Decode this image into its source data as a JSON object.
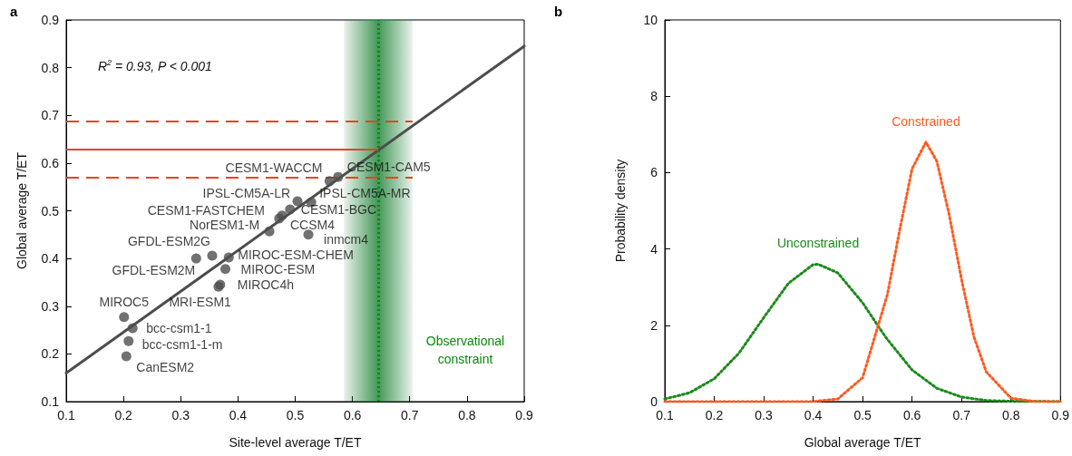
{
  "chart_data": [
    {
      "type": "scatter",
      "title": "a",
      "xlabel": "Site-level average T/ET",
      "ylabel": "Global average T/ET",
      "xlim": [
        0.1,
        0.9
      ],
      "xticks": [
        0.1,
        0.2,
        0.3,
        0.4,
        0.5,
        0.6,
        0.7,
        0.8,
        0.9
      ],
      "ylim": [
        0.1,
        0.9
      ],
      "yticks": [
        0.1,
        0.2,
        0.3,
        0.4,
        0.5,
        0.6,
        0.7,
        0.8,
        0.9
      ],
      "grid": false,
      "legend": false,
      "marker": "circle",
      "series": [
        {
          "color": "#4d4d4d",
          "x": [
            0.56,
            0.575,
            0.504,
            0.528,
            0.472,
            0.491,
            0.455,
            0.477,
            0.523,
            0.355,
            0.384,
            0.327,
            0.378,
            0.369,
            0.366,
            0.201,
            0.216,
            0.209,
            0.205
          ],
          "values": [
            0.562,
            0.571,
            0.52,
            0.518,
            0.484,
            0.503,
            0.457,
            0.49,
            0.45,
            0.406,
            0.402,
            0.4,
            0.378,
            0.345,
            0.341,
            0.277,
            0.254,
            0.227,
            0.195
          ],
          "value_labels": [
            "CESM1-WACCM",
            "CESM1-CAM5",
            "IPSL-CM5A-LR",
            "IPSL-CM5A-MR",
            "CESM1-FASTCHEM",
            "CESM1-BGC",
            "NorESM1-M",
            "CCSM4",
            "inmcm4",
            "GFDL-ESM2G",
            "MIROC-ESM-CHEM",
            "GFDL-ESM2M",
            "MIROC-ESM",
            "MIROC4h",
            "MRI-ESM1",
            "MIROC5",
            "bcc-csm1-1",
            "bcc-csm1-1-m",
            "CanESM2"
          ]
        },
        {
          "type": "line",
          "color": "#4d4d4d",
          "x": [
            0.1,
            0.9
          ],
          "values": [
            0.16,
            0.845
          ],
          "line_style": "solid",
          "marker": "none"
        }
      ],
      "ref_lines": [
        {
          "axis": "y",
          "value": 0.628,
          "color": "#e8431c",
          "line_style": "solid"
        },
        {
          "axis": "y",
          "value": 0.687,
          "color": "#e8431c",
          "line_style": "dashed"
        },
        {
          "axis": "y",
          "value": 0.569,
          "color": "#e8431c",
          "line_style": "dashed"
        },
        {
          "axis": "x",
          "value": 0.645,
          "color": "#0a8a0a",
          "line_style": "dotted"
        }
      ],
      "bands": [
        {
          "axis": "x",
          "from": 0.585,
          "to": 0.705,
          "color": "#2e8b45"
        }
      ],
      "annotations": [
        "R$^{2}$ = 0.93, P < 0.001",
        "Observational constraint"
      ]
    },
    {
      "type": "line",
      "title": "b",
      "xlabel": "Global average T/ET",
      "ylabel": "Probability density",
      "xlim": [
        0.1,
        0.9
      ],
      "xticks": [
        0.1,
        0.2,
        0.3,
        0.4,
        0.5,
        0.6,
        0.7,
        0.8,
        0.9
      ],
      "ylim": [
        0,
        10
      ],
      "yticks": [
        0,
        2,
        4,
        6,
        8,
        10
      ],
      "grid": false,
      "legend": false,
      "marker": "none",
      "line_style": "dotted",
      "series": [
        {
          "name": "Unconstrained",
          "color": "#1a8a1a",
          "x": [
            0.1,
            0.15,
            0.2,
            0.25,
            0.3,
            0.35,
            0.4,
            0.41,
            0.45,
            0.5,
            0.535,
            0.55,
            0.6,
            0.65,
            0.7,
            0.75,
            0.8,
            0.9
          ],
          "values": [
            0.07,
            0.23,
            0.6,
            1.27,
            2.2,
            3.1,
            3.59,
            3.6,
            3.37,
            2.59,
            1.91,
            1.63,
            0.83,
            0.35,
            0.12,
            0.03,
            0.01,
            0
          ]
        },
        {
          "name": "Constrained",
          "color": "#ff5a1f",
          "x": [
            0.1,
            0.4,
            0.45,
            0.5,
            0.55,
            0.575,
            0.6,
            0.628,
            0.65,
            0.675,
            0.7,
            0.725,
            0.75,
            0.8,
            0.85,
            0.9
          ],
          "values": [
            0,
            0,
            0.07,
            0.63,
            2.8,
            4.5,
            6.1,
            6.8,
            6.3,
            4.9,
            3.2,
            1.7,
            0.78,
            0.09,
            0,
            0
          ]
        }
      ]
    }
  ]
}
